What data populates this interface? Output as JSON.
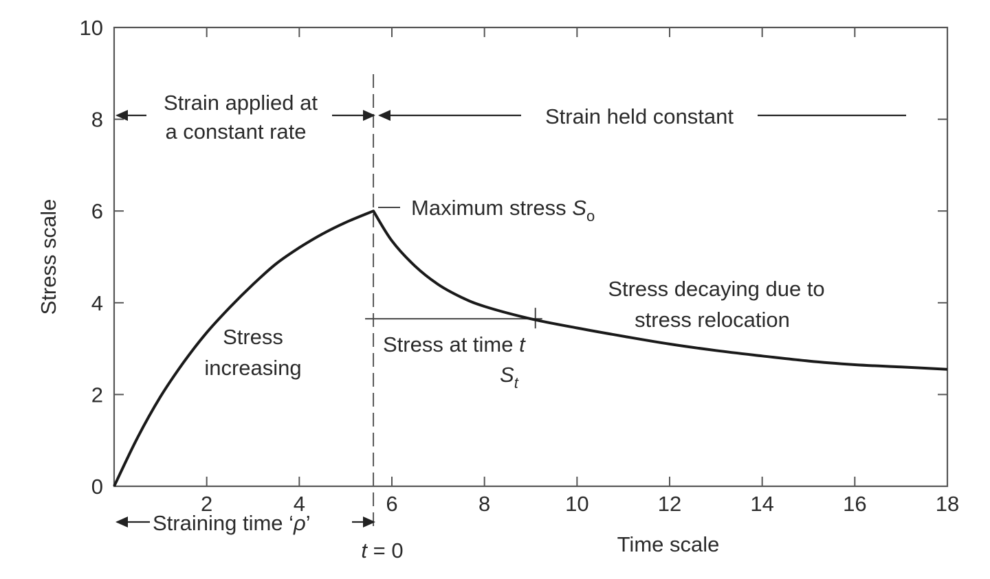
{
  "chart_data": {
    "type": "line",
    "xlabel": "Time scale",
    "ylabel": "Stress scale",
    "xlim": [
      0,
      18
    ],
    "ylim": [
      0,
      10
    ],
    "x_ticks": [
      "2",
      "4",
      "6",
      "8",
      "10",
      "12",
      "14",
      "16",
      "18"
    ],
    "y_ticks": [
      "0",
      "2",
      "4",
      "6",
      "8",
      "10"
    ],
    "series": [
      {
        "x": [
          0,
          0.5,
          1,
          1.5,
          2,
          2.5,
          3,
          3.5,
          4,
          4.5,
          5,
          5.6,
          6,
          6.5,
          7,
          7.5,
          8,
          9,
          10,
          11,
          12,
          13,
          14,
          15,
          16,
          17,
          18
        ],
        "y": [
          0,
          1.05,
          1.95,
          2.7,
          3.35,
          3.9,
          4.4,
          4.85,
          5.2,
          5.5,
          5.75,
          6.0,
          5.35,
          4.8,
          4.4,
          4.12,
          3.92,
          3.65,
          3.45,
          3.27,
          3.1,
          2.96,
          2.84,
          2.73,
          2.65,
          2.6,
          2.55
        ]
      }
    ],
    "peak": {
      "x": 5.6,
      "y": 6.0
    },
    "stress_at_t": {
      "x": 9.1,
      "y": 3.65
    },
    "annotations": {
      "strain_applied_1": "Strain applied at",
      "strain_applied_2": "a constant rate",
      "strain_held": "Strain held constant",
      "max_stress": "Maximum stress ",
      "max_stress_sym": "S",
      "max_stress_sub": "o",
      "stress_increasing_1": "Stress",
      "stress_increasing_2": "increasing",
      "stress_decaying_1": "Stress decaying due to",
      "stress_decaying_2": "stress relocation",
      "stress_at_time": "Stress at time ",
      "stress_at_time_t": "t",
      "st_sym": "S",
      "st_sub": "t",
      "straining_time": "Straining time ‘",
      "straining_time_rho": "ρ",
      "straining_time_end": "’",
      "t_zero_t": "t",
      "t_zero_rest": " = 0"
    }
  }
}
